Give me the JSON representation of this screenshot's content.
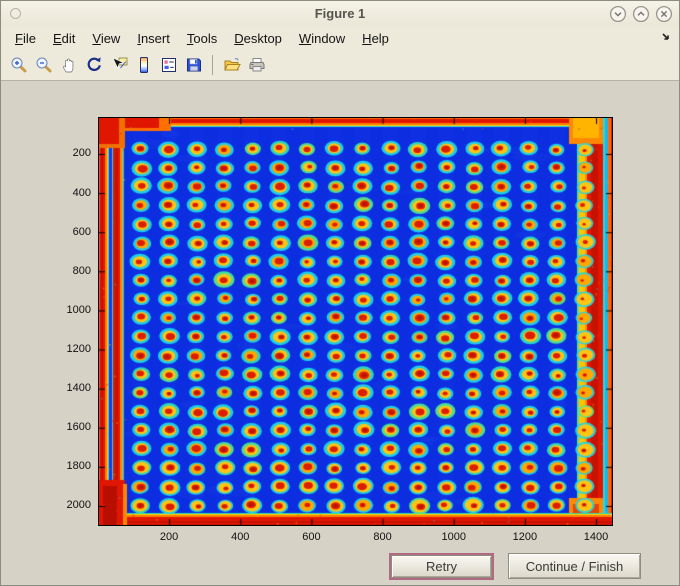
{
  "window": {
    "title": "Figure 1",
    "controls": [
      "window-minimize",
      "window-maximize",
      "window-close"
    ]
  },
  "menubar": {
    "items": [
      {
        "label": "File"
      },
      {
        "label": "Edit"
      },
      {
        "label": "View"
      },
      {
        "label": "Insert"
      },
      {
        "label": "Tools"
      },
      {
        "label": "Desktop"
      },
      {
        "label": "Window"
      },
      {
        "label": "Help"
      }
    ],
    "overflow_icon": "arrow-south-east"
  },
  "toolbar": {
    "buttons": [
      {
        "name": "zoom-in-icon"
      },
      {
        "name": "zoom-out-icon"
      },
      {
        "name": "pan-hand-icon"
      },
      {
        "name": "rotate-3d-icon"
      },
      {
        "name": "data-cursor-icon"
      },
      {
        "name": "colorbar-icon"
      },
      {
        "name": "legend-icon"
      },
      {
        "name": "save-icon"
      },
      {
        "name": "open-folder-icon"
      },
      {
        "name": "print-icon"
      }
    ]
  },
  "buttons": {
    "retry": "Retry",
    "continue_finish": "Continue / Finish"
  },
  "colors": {
    "chrome": "#edeadb",
    "figure_background": "#d6d2c6",
    "retry_highlight_border": "#b26a84",
    "axis": "#000000"
  },
  "chart_data": {
    "type": "heatmap",
    "title": "",
    "description": "Jet-colormap intensity image of a scanned spotted plate: regular grid of hot (red/yellow) spots with cyan halos on a blue background, saturated red bands along all four edges",
    "colormap": "jet",
    "x_range": [
      0,
      1450
    ],
    "y_range": [
      0,
      2100
    ],
    "xticks": [
      200,
      400,
      600,
      800,
      1000,
      1200,
      1400
    ],
    "yticks": [
      200,
      400,
      600,
      800,
      1000,
      1200,
      1400,
      1600,
      1800,
      2000
    ],
    "grid": {
      "rows": 20,
      "cols": 17,
      "x_start": 121,
      "x_step": 78,
      "y_start": 174,
      "y_step": 96
    },
    "palette": {
      "background": "#0c2ee0",
      "spot_halo": "#1fd8e8",
      "spot_ring": "#ffc414",
      "spot_core": "#dc1e00",
      "edge_red": "#e01600",
      "edge_dark_red": "#c81200",
      "edge_orange": "#ff7a00",
      "edge_yellow": "#ffd000",
      "edge_cyan": "#2cd8dc"
    }
  }
}
